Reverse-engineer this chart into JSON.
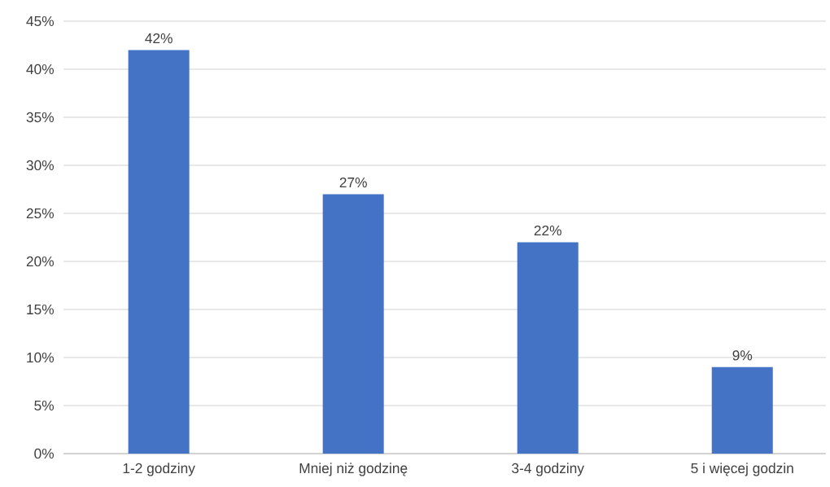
{
  "chart_data": {
    "type": "bar",
    "categories": [
      "1-2 godziny",
      "Mniej niż godzinę",
      "3-4 godziny",
      "5 i więcej godzin"
    ],
    "values": [
      42,
      27,
      22,
      9
    ],
    "value_labels": [
      "42%",
      "27%",
      "22%",
      "9%"
    ],
    "color": "#4472c4",
    "ylim": [
      0,
      45
    ],
    "yticks": [
      {
        "value": 0,
        "label": "0%"
      },
      {
        "value": 5,
        "label": "5%"
      },
      {
        "value": 10,
        "label": "10%"
      },
      {
        "value": 15,
        "label": "15%"
      },
      {
        "value": 20,
        "label": "20%"
      },
      {
        "value": 25,
        "label": "25%"
      },
      {
        "value": 30,
        "label": "30%"
      },
      {
        "value": 35,
        "label": "35%"
      },
      {
        "value": 40,
        "label": "40%"
      },
      {
        "value": 45,
        "label": "45%"
      }
    ],
    "grid": "y"
  }
}
